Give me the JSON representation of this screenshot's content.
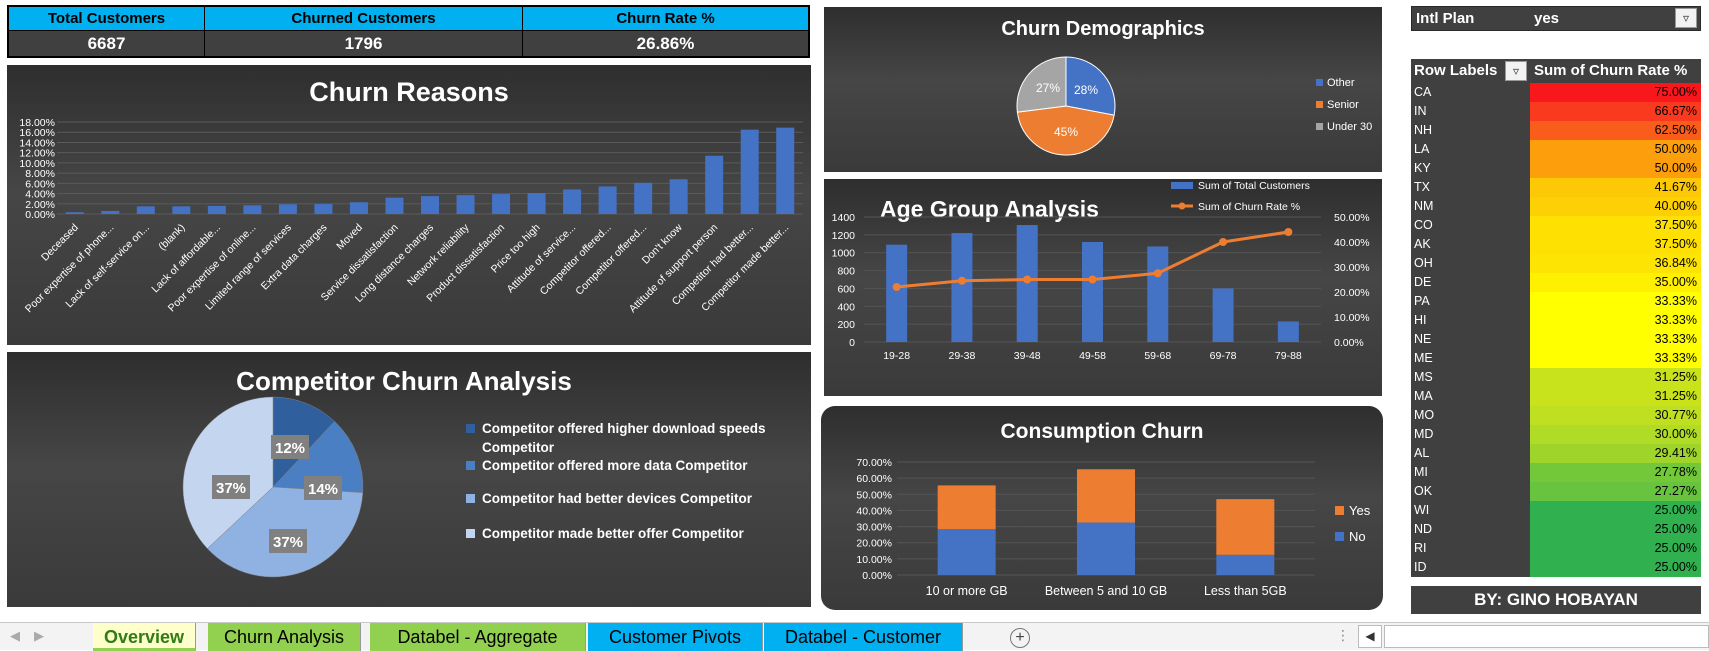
{
  "kpi": {
    "headers": [
      "Total Customers",
      "Churned Customers",
      "Churn Rate %"
    ],
    "values": [
      "6687",
      "1796",
      "26.86%"
    ],
    "header_bg": "#00b0f0"
  },
  "churn_reasons": {
    "title": "Churn Reasons",
    "chart_data": {
      "type": "bar",
      "categories": [
        "Deceased",
        "Poor expertise of phone...",
        "Lack of self-service on...",
        "(blank)",
        "Lack of affordable...",
        "Poor expertise of online...",
        "Limited range of services",
        "Extra data charges",
        "Moved",
        "Service dissatisfaction",
        "Long distance charges",
        "Network reliability",
        "Product dissatisfaction",
        "Price too high",
        "Attitude of service...",
        "Competitor offered...",
        "Competitor offered...",
        "Don't know",
        "Attitude of support person",
        "Competitor had better...",
        "Competitor made better..."
      ],
      "values": [
        0.35,
        0.6,
        1.5,
        1.5,
        1.6,
        1.7,
        1.9,
        1.95,
        2.3,
        3.2,
        3.5,
        3.7,
        3.9,
        4.1,
        4.8,
        5.4,
        6.1,
        6.8,
        11.4,
        16.5,
        16.9
      ],
      "ylim": [
        0,
        18
      ],
      "yticks": [
        "0.00%",
        "2.00%",
        "4.00%",
        "6.00%",
        "8.00%",
        "10.00%",
        "12.00%",
        "14.00%",
        "16.00%",
        "18.00%"
      ],
      "color": "#4472c4"
    }
  },
  "competitor": {
    "title": "Competitor Churn Analysis",
    "chart_data": {
      "type": "pie",
      "labels": [
        "Competitor offered higher download speeds Competitor",
        "Competitor offered more data Competitor",
        "Competitor had better devices Competitor",
        "Competitor made better offer Competitor"
      ],
      "values": [
        12,
        14,
        37,
        37
      ],
      "data_labels": [
        "12%",
        "14%",
        "37%",
        "37%"
      ],
      "colors": [
        "#305f9e",
        "#4a7fc4",
        "#8fb2e2",
        "#c4d6ef"
      ]
    }
  },
  "demographics": {
    "title": "Churn Demographics",
    "chart_data": {
      "type": "pie",
      "labels": [
        "Other",
        "Senior",
        "Under 30"
      ],
      "values": [
        28,
        45,
        27
      ],
      "data_labels": [
        "28%",
        "45%",
        "27%"
      ],
      "colors": [
        "#4472c4",
        "#ed7d31",
        "#a5a5a5"
      ]
    }
  },
  "age_group": {
    "title": "Age Group Analysis",
    "chart_data": {
      "type": "bar",
      "categories": [
        "19-28",
        "29-38",
        "39-48",
        "49-58",
        "59-68",
        "69-78",
        "79-88"
      ],
      "series": [
        {
          "name": "Sum of Total Customers",
          "values": [
            1090,
            1220,
            1310,
            1120,
            1070,
            600,
            230
          ],
          "axis": "left",
          "kind": "bar",
          "color": "#4472c4"
        },
        {
          "name": "Sum of Churn Rate %",
          "values": [
            22,
            24.5,
            25,
            25,
            27.5,
            40,
            44
          ],
          "axis": "right",
          "kind": "line",
          "color": "#ed7d31"
        }
      ],
      "ylim_left": [
        0,
        1400
      ],
      "ylim_right": [
        0,
        50
      ],
      "yticks_left": [
        "0",
        "200",
        "400",
        "600",
        "800",
        "1000",
        "1200",
        "1400"
      ],
      "yticks_right": [
        "0.00%",
        "10.00%",
        "20.00%",
        "30.00%",
        "40.00%",
        "50.00%"
      ]
    }
  },
  "consumption": {
    "title": "Consumption Churn",
    "chart_data": {
      "type": "bar",
      "stacked": true,
      "categories": [
        "10 or more GB",
        "Between 5 and 10 GB",
        "Less than 5GB"
      ],
      "series": [
        {
          "name": "No",
          "values": [
            28.5,
            32.5,
            12.5
          ],
          "color": "#4472c4"
        },
        {
          "name": "Yes",
          "values": [
            27,
            33,
            34.5
          ],
          "color": "#ed7d31"
        }
      ],
      "ylim": [
        0,
        70
      ],
      "yticks": [
        "0.00%",
        "10.00%",
        "20.00%",
        "30.00%",
        "40.00%",
        "50.00%",
        "60.00%",
        "70.00%"
      ],
      "legend": [
        "Yes",
        "No"
      ]
    }
  },
  "slicer": {
    "label": "Intl Plan",
    "value": "yes",
    "filter_icon": "filter-icon"
  },
  "pivot": {
    "header_label": "Row Labels",
    "header_value": "Sum of Churn Rate %",
    "rows": [
      {
        "state": "CA",
        "rate": "75.00%",
        "color": "#f8171b"
      },
      {
        "state": "IN",
        "rate": "66.67%",
        "color": "#f93a1e"
      },
      {
        "state": "NH",
        "rate": "62.50%",
        "color": "#fa5c1c"
      },
      {
        "state": "LA",
        "rate": "50.00%",
        "color": "#fd9f0d"
      },
      {
        "state": "KY",
        "rate": "50.00%",
        "color": "#fd9f0d"
      },
      {
        "state": "TX",
        "rate": "41.67%",
        "color": "#fdc806"
      },
      {
        "state": "NM",
        "rate": "40.00%",
        "color": "#fdd005"
      },
      {
        "state": "CO",
        "rate": "37.50%",
        "color": "#fee002"
      },
      {
        "state": "AK",
        "rate": "37.50%",
        "color": "#fee002"
      },
      {
        "state": "OH",
        "rate": "36.84%",
        "color": "#fee402"
      },
      {
        "state": "DE",
        "rate": "35.00%",
        "color": "#ffef00"
      },
      {
        "state": "PA",
        "rate": "33.33%",
        "color": "#ffff00"
      },
      {
        "state": "HI",
        "rate": "33.33%",
        "color": "#ffff00"
      },
      {
        "state": "NE",
        "rate": "33.33%",
        "color": "#ffff00"
      },
      {
        "state": "ME",
        "rate": "33.33%",
        "color": "#ffff00"
      },
      {
        "state": "MS",
        "rate": "31.25%",
        "color": "#c8e31b"
      },
      {
        "state": "MA",
        "rate": "31.25%",
        "color": "#c8e31b"
      },
      {
        "state": "MO",
        "rate": "30.77%",
        "color": "#bfe020"
      },
      {
        "state": "MD",
        "rate": "30.00%",
        "color": "#b0db26"
      },
      {
        "state": "AL",
        "rate": "29.41%",
        "color": "#9fd52b"
      },
      {
        "state": "MI",
        "rate": "27.78%",
        "color": "#73c83a"
      },
      {
        "state": "OK",
        "rate": "27.27%",
        "color": "#68c43e"
      },
      {
        "state": "WI",
        "rate": "25.00%",
        "color": "#31b04f"
      },
      {
        "state": "ND",
        "rate": "25.00%",
        "color": "#31b04f"
      },
      {
        "state": "RI",
        "rate": "25.00%",
        "color": "#31b04f"
      },
      {
        "state": "ID",
        "rate": "25.00%",
        "color": "#31b04f"
      }
    ]
  },
  "byline": "BY: GINO HOBAYAN",
  "tabs": [
    {
      "label": "Overview",
      "active": true,
      "color": "#92d050"
    },
    {
      "label": "Churn Analysis",
      "active": false,
      "color": "#92d050"
    },
    {
      "label": "Databel - Aggregate",
      "active": false,
      "color": "#92d050"
    },
    {
      "label": "Customer Pivots",
      "active": false,
      "color": "#00b0f0"
    },
    {
      "label": "Databel - Customer",
      "active": false,
      "color": "#00b0f0"
    }
  ]
}
